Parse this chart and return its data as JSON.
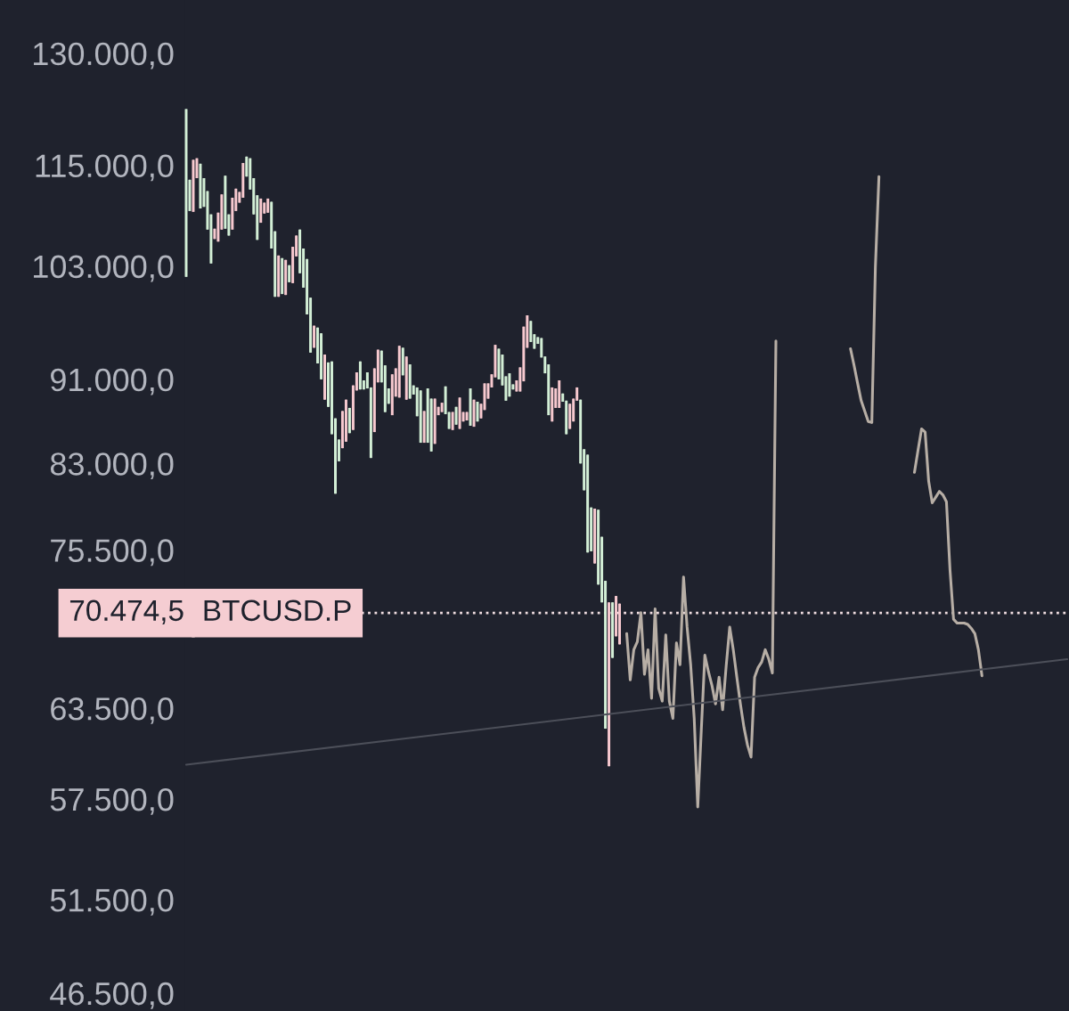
{
  "chart_data": {
    "type": "candlestick",
    "tick_labels": "y",
    "log": true,
    "grid": false,
    "ylim": [
      45600,
      137800
    ],
    "yticks": [
      {
        "value": 130000,
        "label": "130.000,0"
      },
      {
        "value": 115000,
        "label": "115.000,0"
      },
      {
        "value": 103000,
        "label": "103.000,0"
      },
      {
        "value": 91000,
        "label": "91.000,0"
      },
      {
        "value": 83000,
        "label": "83.000,0"
      },
      {
        "value": 75500,
        "label": "75.500,0"
      },
      {
        "value": 63500,
        "label": "63.500,0"
      },
      {
        "value": 57500,
        "label": "57.500,0"
      },
      {
        "value": 51500,
        "label": "51.500,0"
      },
      {
        "value": 46500,
        "label": "46.500,0"
      }
    ],
    "ref_lines": [
      {
        "axis": "y",
        "value": 70474.5,
        "label": "70.474,5",
        "color": "#efdde0",
        "line_style": "dotted"
      }
    ],
    "annotations": [
      "BTCUSD.P"
    ],
    "categories": [
      null,
      null,
      null,
      null,
      null,
      null,
      null,
      null,
      null,
      null,
      null,
      null,
      null,
      null,
      null,
      null,
      null,
      null,
      null,
      null,
      null,
      null,
      null,
      null,
      null,
      null,
      null,
      null,
      null,
      null,
      null,
      null,
      null,
      null,
      null,
      null,
      null,
      null,
      null,
      null,
      null,
      null,
      null,
      null,
      null,
      null,
      null,
      null,
      null,
      null,
      null,
      null,
      null,
      null,
      null,
      null,
      null,
      null,
      null,
      null,
      null,
      null,
      null,
      null,
      null,
      null,
      null,
      null,
      null,
      null,
      null,
      null,
      null,
      null,
      null,
      null,
      null,
      null,
      null,
      null,
      null,
      null,
      null,
      null,
      null,
      null,
      null,
      null,
      null,
      null,
      null,
      null,
      null,
      null,
      null,
      null,
      null,
      null,
      null,
      null,
      null,
      null,
      null,
      null,
      null,
      null,
      null,
      null,
      null,
      null,
      null,
      null,
      null,
      null,
      null,
      null,
      null,
      null,
      null,
      null,
      null,
      null,
      null,
      null,
      null,
      null,
      null,
      null,
      null,
      null,
      null,
      null,
      null,
      null,
      null,
      null,
      null,
      null,
      null,
      null,
      null,
      null,
      null,
      null,
      null,
      null,
      null,
      null,
      null,
      null,
      null,
      null,
      null,
      null,
      null,
      null,
      null,
      null,
      null,
      null,
      null,
      null,
      null,
      null,
      null,
      null,
      null,
      null,
      null,
      null,
      null,
      null,
      null,
      null,
      null,
      null,
      null,
      null,
      null,
      null,
      null,
      null,
      null,
      null,
      null,
      null,
      null,
      null,
      null,
      null,
      null,
      null,
      null,
      null,
      null,
      null,
      null,
      null,
      null,
      null,
      null,
      null,
      null,
      null,
      null,
      null,
      null,
      null,
      null,
      null,
      null,
      null,
      null,
      null,
      null,
      null,
      null,
      null,
      null,
      null,
      null,
      null,
      null,
      null,
      null,
      null,
      null,
      null,
      null,
      null,
      null,
      null,
      null,
      null,
      null,
      null,
      null,
      null,
      null,
      null,
      null,
      null,
      null,
      null,
      null,
      null,
      null,
      null,
      null
    ],
    "ohlc": [
      [
        122300,
        122300,
        101800,
        101800
      ],
      [
        113200,
        113200,
        109400,
        109400
      ],
      [
        109300,
        115700,
        109300,
        115700
      ],
      [
        113400,
        115900,
        113400,
        115900
      ],
      [
        115200,
        115200,
        109700,
        109700
      ],
      [
        113400,
        113400,
        109900,
        109900
      ],
      [
        111800,
        111800,
        107200,
        107200
      ],
      [
        109000,
        109000,
        103300,
        103300
      ],
      [
        106100,
        107300,
        106100,
        107300
      ],
      [
        105800,
        109200,
        105800,
        109200
      ],
      [
        107200,
        111400,
        107200,
        111400
      ],
      [
        113700,
        113700,
        107300,
        107300
      ],
      [
        109000,
        109000,
        106500,
        106500
      ],
      [
        107200,
        111000,
        107200,
        111000
      ],
      [
        109400,
        112100,
        109400,
        112100
      ],
      [
        110400,
        111700,
        110400,
        111700
      ],
      [
        111000,
        115300,
        111000,
        115300
      ],
      [
        116100,
        116100,
        113600,
        113600
      ],
      [
        115900,
        115900,
        112000,
        112000
      ],
      [
        113400,
        113400,
        109000,
        109000
      ],
      [
        111300,
        111300,
        106000,
        106000
      ],
      [
        108000,
        110900,
        108000,
        110900
      ],
      [
        109100,
        110400,
        109100,
        110400
      ],
      [
        109200,
        110900,
        109200,
        110900
      ],
      [
        110500,
        110500,
        105000,
        105000
      ],
      [
        107000,
        107000,
        99600,
        99600
      ],
      [
        99600,
        104200,
        99600,
        104200
      ],
      [
        103900,
        103900,
        99900,
        99900
      ],
      [
        99800,
        103700,
        99800,
        103700
      ],
      [
        103100,
        103100,
        101200,
        101200
      ],
      [
        101100,
        105200,
        101100,
        105200
      ],
      [
        104100,
        106500,
        104100,
        106500
      ],
      [
        107200,
        107200,
        102200,
        102200
      ],
      [
        105000,
        105000,
        100600,
        100600
      ],
      [
        103800,
        103800,
        97700,
        97700
      ],
      [
        99500,
        99500,
        93700,
        93700
      ],
      [
        94200,
        96500,
        94200,
        96500
      ],
      [
        96300,
        96300,
        92600,
        92600
      ],
      [
        95700,
        95700,
        91000,
        91000
      ],
      [
        89000,
        93500,
        89000,
        93500
      ],
      [
        92700,
        92700,
        88300,
        88300
      ],
      [
        92800,
        92800,
        85700,
        85700
      ],
      [
        87200,
        87200,
        80300,
        80300
      ],
      [
        85200,
        85200,
        83200,
        83200
      ],
      [
        84400,
        87900,
        84400,
        87900
      ],
      [
        85000,
        89000,
        85000,
        89000
      ],
      [
        88200,
        88200,
        85800,
        85800
      ],
      [
        86100,
        90400,
        86100,
        90400
      ],
      [
        89900,
        91700,
        89900,
        91700
      ],
      [
        92800,
        92800,
        90000,
        90000
      ],
      [
        90900,
        90900,
        90000,
        90000
      ],
      [
        91700,
        91700,
        90100,
        90100
      ],
      [
        90200,
        90200,
        83500,
        83500
      ],
      [
        85900,
        92100,
        85900,
        92100
      ],
      [
        90700,
        94000,
        90700,
        94000
      ],
      [
        93900,
        93900,
        90700,
        90700
      ],
      [
        92400,
        92400,
        87800,
        87800
      ],
      [
        90100,
        90100,
        88600,
        88600
      ],
      [
        87500,
        91500,
        87500,
        91500
      ],
      [
        89300,
        92100,
        89300,
        92100
      ],
      [
        89200,
        94400,
        89200,
        94400
      ],
      [
        94200,
        94200,
        91400,
        91400
      ],
      [
        89000,
        93300,
        89000,
        93300
      ],
      [
        92500,
        92500,
        89100,
        89100
      ],
      [
        90400,
        90400,
        89500,
        89500
      ],
      [
        90200,
        90200,
        87400,
        87400
      ],
      [
        89900,
        89900,
        84900,
        84900
      ],
      [
        84900,
        87900,
        84900,
        87900
      ],
      [
        90100,
        90100,
        84900,
        84900
      ],
      [
        89100,
        89100,
        84100,
        84100
      ],
      [
        84800,
        89100,
        84800,
        89100
      ],
      [
        87500,
        88300,
        87500,
        88300
      ],
      [
        87800,
        88700,
        87800,
        88700
      ],
      [
        90300,
        90300,
        87600,
        87600
      ],
      [
        87800,
        87800,
        86200,
        86200
      ],
      [
        86100,
        87800,
        86100,
        87800
      ],
      [
        88300,
        88300,
        86600,
        86600
      ],
      [
        86200,
        89200,
        86200,
        89200
      ],
      [
        86900,
        87800,
        86900,
        87800
      ],
      [
        87000,
        87800,
        87000,
        87800
      ],
      [
        90100,
        90100,
        86500,
        86500
      ],
      [
        86400,
        89000,
        86400,
        89000
      ],
      [
        88800,
        88800,
        86900,
        86900
      ],
      [
        87200,
        88600,
        87200,
        88600
      ],
      [
        88000,
        90600,
        88000,
        90600
      ],
      [
        89100,
        90600,
        89100,
        90600
      ],
      [
        90200,
        91500,
        90200,
        91500
      ],
      [
        91200,
        94500,
        91200,
        94500
      ],
      [
        94100,
        94100,
        91000,
        91000
      ],
      [
        93500,
        93500,
        90400,
        90400
      ],
      [
        91300,
        91300,
        88900,
        88900
      ],
      [
        91600,
        91600,
        89300,
        89300
      ],
      [
        90500,
        90500,
        90000,
        90000
      ],
      [
        89800,
        90900,
        89800,
        90900
      ],
      [
        89800,
        92200,
        89800,
        92200
      ],
      [
        90800,
        96400,
        90800,
        96400
      ],
      [
        94200,
        97600,
        94200,
        97600
      ],
      [
        97000,
        97000,
        94800,
        94800
      ],
      [
        95600,
        95600,
        94100,
        94100
      ],
      [
        95300,
        95300,
        94600,
        94600
      ],
      [
        95200,
        95200,
        93200,
        93200
      ],
      [
        93300,
        93300,
        91600,
        91600
      ],
      [
        92500,
        92500,
        87500,
        87500
      ],
      [
        86900,
        90200,
        86900,
        90200
      ],
      [
        88200,
        90100,
        88200,
        90100
      ],
      [
        88200,
        90900,
        88200,
        90900
      ],
      [
        89600,
        89600,
        88800,
        88800
      ],
      [
        88900,
        88900,
        85700,
        85700
      ],
      [
        86200,
        88600,
        86200,
        88600
      ],
      [
        86900,
        89100,
        86900,
        89100
      ],
      [
        88900,
        90200,
        88900,
        90200
      ],
      [
        89000,
        89000,
        83000,
        83000
      ],
      [
        84300,
        84300,
        80600,
        80600
      ],
      [
        83800,
        83800,
        75300,
        75300
      ],
      [
        79100,
        79100,
        75400,
        75400
      ],
      [
        74400,
        79000,
        74400,
        79000
      ],
      [
        78900,
        78900,
        72700,
        72700
      ],
      [
        76600,
        76600,
        71300,
        71300
      ],
      [
        73000,
        73000,
        62100,
        62100
      ],
      [
        59600,
        71300,
        59600,
        71300
      ],
      [
        71300,
        71300,
        67100,
        67100
      ],
      [
        68700,
        71800,
        68700,
        71800
      ],
      [
        68100,
        71200,
        68100,
        71200
      ],
      null,
      null,
      null,
      null,
      null,
      null,
      null,
      null,
      null,
      null,
      null,
      null,
      null,
      null,
      null,
      null,
      null,
      null,
      null,
      null,
      null,
      null,
      null,
      null,
      null,
      null,
      null,
      null,
      null,
      null,
      null,
      null,
      null,
      null,
      null,
      null,
      null,
      null,
      null,
      null,
      null,
      null,
      null,
      null,
      null,
      null,
      null,
      null,
      null,
      null,
      null,
      null,
      null,
      null,
      null,
      null,
      null,
      null,
      null,
      null,
      null,
      null,
      null,
      null,
      null,
      null,
      null,
      null,
      null,
      null,
      null,
      null,
      null,
      null,
      null,
      null,
      null,
      null,
      null,
      null,
      null,
      null,
      null,
      null,
      null,
      null,
      null,
      null,
      null,
      null,
      null,
      null,
      null,
      null,
      null,
      null,
      null,
      null,
      null,
      null,
      null,
      null,
      null,
      null,
      null,
      null,
      null,
      null,
      null,
      null,
      null,
      null,
      null,
      null,
      null,
      null,
      null,
      null,
      null,
      null,
      null,
      null,
      null,
      null,
      null,
      null
    ],
    "colors": [
      "#d3efd6",
      "#d3efd6",
      "#f7c9cf",
      "#f7c9cf",
      "#d3efd6",
      "#d3efd6",
      "#d3efd6",
      "#d3efd6",
      "#f7c9cf",
      "#f7c9cf",
      "#f7c9cf",
      "#d3efd6",
      "#d3efd6",
      "#f7c9cf",
      "#f7c9cf",
      "#f7c9cf",
      "#f7c9cf",
      "#d3efd6",
      "#d3efd6",
      "#d3efd6",
      "#d3efd6",
      "#f7c9cf",
      "#f7c9cf",
      "#f7c9cf",
      "#d3efd6",
      "#d3efd6",
      "#f7c9cf",
      "#d3efd6",
      "#f7c9cf",
      "#d3efd6",
      "#f7c9cf",
      "#f7c9cf",
      "#d3efd6",
      "#d3efd6",
      "#d3efd6",
      "#d3efd6",
      "#f7c9cf",
      "#d3efd6",
      "#d3efd6",
      "#f7c9cf",
      "#d3efd6",
      "#d3efd6",
      "#d3efd6",
      "#d3efd6",
      "#f7c9cf",
      "#f7c9cf",
      "#d3efd6",
      "#f7c9cf",
      "#f7c9cf",
      "#d3efd6",
      "#d3efd6",
      "#d3efd6",
      "#d3efd6",
      "#f7c9cf",
      "#f7c9cf",
      "#d3efd6",
      "#d3efd6",
      "#d3efd6",
      "#f7c9cf",
      "#f7c9cf",
      "#f7c9cf",
      "#d3efd6",
      "#f7c9cf",
      "#d3efd6",
      "#d3efd6",
      "#d3efd6",
      "#d3efd6",
      "#f7c9cf",
      "#d3efd6",
      "#d3efd6",
      "#f7c9cf",
      "#f7c9cf",
      "#f7c9cf",
      "#d3efd6",
      "#d3efd6",
      "#f7c9cf",
      "#d3efd6",
      "#f7c9cf",
      "#f7c9cf",
      "#f7c9cf",
      "#d3efd6",
      "#f7c9cf",
      "#d3efd6",
      "#f7c9cf",
      "#f7c9cf",
      "#f7c9cf",
      "#f7c9cf",
      "#f7c9cf",
      "#d3efd6",
      "#d3efd6",
      "#d3efd6",
      "#d3efd6",
      "#d3efd6",
      "#f7c9cf",
      "#f7c9cf",
      "#f7c9cf",
      "#f7c9cf",
      "#d3efd6",
      "#d3efd6",
      "#d3efd6",
      "#d3efd6",
      "#d3efd6",
      "#d3efd6",
      "#f7c9cf",
      "#f7c9cf",
      "#f7c9cf",
      "#d3efd6",
      "#d3efd6",
      "#f7c9cf",
      "#f7c9cf",
      "#f7c9cf",
      "#d3efd6",
      "#d3efd6",
      "#d3efd6",
      "#d3efd6",
      "#f7c9cf",
      "#d3efd6",
      "#d3efd6",
      "#d3efd6",
      "#f7c9cf",
      "#d3efd6",
      "#f7c9cf",
      "#f7c9cf",
      null,
      null,
      null,
      null,
      null,
      null,
      null,
      null,
      null,
      null,
      null,
      null,
      null,
      null,
      null,
      null,
      null,
      null,
      null,
      null,
      null,
      null,
      null,
      null,
      null,
      null,
      null,
      null,
      null,
      null,
      null,
      null,
      null,
      null,
      null,
      null,
      null,
      null,
      null,
      null,
      null,
      null,
      null,
      null,
      null,
      null,
      null,
      null,
      null,
      null,
      null,
      null,
      null,
      null,
      null,
      null,
      null,
      null,
      null,
      null,
      null,
      null,
      null,
      null,
      null,
      null,
      null,
      null,
      null,
      null,
      null,
      null,
      null,
      null,
      null,
      null,
      null,
      null,
      null,
      null,
      null,
      null,
      null,
      null,
      null,
      null,
      null,
      null,
      null,
      null,
      null,
      null,
      null,
      null,
      null,
      null,
      null,
      null,
      null,
      null,
      null,
      null,
      null,
      null,
      null,
      null,
      null,
      null,
      null,
      null,
      null,
      null,
      null,
      null,
      null,
      null,
      null,
      null,
      null,
      null,
      null,
      null,
      null,
      null,
      null,
      null
    ],
    "series": [
      {
        "type": "line",
        "color": "#b7aea5",
        "values": [
          null,
          null,
          null,
          null,
          null,
          null,
          null,
          null,
          null,
          null,
          null,
          null,
          null,
          null,
          null,
          null,
          null,
          null,
          null,
          null,
          null,
          null,
          null,
          null,
          null,
          null,
          null,
          null,
          null,
          null,
          null,
          null,
          null,
          null,
          null,
          null,
          null,
          null,
          null,
          null,
          null,
          null,
          null,
          null,
          null,
          null,
          null,
          null,
          null,
          null,
          null,
          null,
          null,
          null,
          null,
          null,
          null,
          null,
          null,
          null,
          null,
          null,
          null,
          null,
          null,
          null,
          null,
          null,
          null,
          null,
          null,
          null,
          null,
          null,
          null,
          null,
          null,
          null,
          null,
          null,
          null,
          null,
          null,
          null,
          null,
          null,
          null,
          null,
          null,
          null,
          null,
          null,
          null,
          null,
          null,
          null,
          null,
          null,
          null,
          null,
          null,
          null,
          null,
          null,
          null,
          null,
          null,
          null,
          null,
          null,
          null,
          null,
          null,
          null,
          null,
          null,
          null,
          null,
          null,
          null,
          null,
          null,
          null,
          null,
          68900,
          65500,
          67700,
          68300,
          70500,
          65900,
          67700,
          64200,
          70800,
          64900,
          64000,
          68800,
          64000,
          62800,
          68200,
          66600,
          73300,
          69400,
          66600,
          62800,
          57000,
          62000,
          67300,
          66100,
          65100,
          63800,
          65700,
          63400,
          66500,
          69400,
          67700,
          65700,
          63800,
          62200,
          61000,
          60200,
          65700,
          66400,
          66800,
          67700,
          67000,
          66000,
          94900,
          null,
          null,
          null,
          null,
          null,
          null,
          null,
          null,
          null,
          null,
          null,
          null,
          null,
          null,
          null,
          null,
          null,
          null,
          null,
          null,
          null,
          null,
          null,
          null,
          null,
          null,
          null,
          null,
          null,
          null,
          null,
          null,
          null,
          null,
          null,
          null,
          null,
          null,
          null,
          null,
          null,
          null,
          null,
          null,
          null,
          null,
          null,
          null,
          null,
          null,
          null,
          null,
          null,
          null,
          null,
          null,
          null,
          null,
          null,
          null,
          null,
          null,
          null,
          null,
          null,
          null,
          null,
          null,
          null,
          null,
          null,
          null,
          null,
          null,
          null,
          null,
          null,
          null,
          null,
          null,
          null,
          null
        ]
      },
      {
        "type": "line",
        "color": "#b7aea5",
        "values": [
          null,
          null,
          null,
          null,
          null,
          null,
          null,
          null,
          null,
          null,
          null,
          null,
          null,
          null,
          null,
          null,
          null,
          null,
          null,
          null,
          null,
          null,
          null,
          null,
          null,
          null,
          null,
          null,
          null,
          null,
          null,
          null,
          null,
          null,
          null,
          null,
          null,
          null,
          null,
          null,
          null,
          null,
          null,
          null,
          null,
          null,
          null,
          null,
          null,
          null,
          null,
          null,
          null,
          null,
          null,
          null,
          null,
          null,
          null,
          null,
          null,
          null,
          null,
          null,
          null,
          null,
          null,
          null,
          null,
          null,
          null,
          null,
          null,
          null,
          null,
          null,
          null,
          null,
          null,
          null,
          null,
          null,
          null,
          null,
          null,
          null,
          null,
          null,
          null,
          null,
          null,
          null,
          null,
          null,
          null,
          null,
          null,
          null,
          null,
          null,
          null,
          null,
          null,
          null,
          null,
          null,
          null,
          null,
          null,
          null,
          null,
          null,
          null,
          null,
          null,
          null,
          null,
          null,
          null,
          null,
          null,
          null,
          null,
          null,
          null,
          null,
          null,
          null,
          null,
          null,
          null,
          null,
          null,
          null,
          null,
          null,
          null,
          null,
          null,
          null,
          null,
          null,
          null,
          null,
          null,
          null,
          null,
          null,
          null,
          null,
          null,
          null,
          null,
          null,
          null,
          null,
          null,
          null,
          null,
          null,
          null,
          null,
          null,
          null,
          null,
          null,
          null,
          null,
          null,
          null,
          null,
          null,
          null,
          null,
          null,
          null,
          null,
          null,
          null,
          null,
          null,
          null,
          null,
          null,
          null,
          null,
          null,
          94100,
          92400,
          90600,
          88900,
          87900,
          86900,
          86800,
          102900,
          113600,
          null,
          null,
          null,
          null,
          null,
          null,
          null,
          null,
          null,
          null,
          null,
          null,
          null,
          null,
          null,
          null,
          null,
          null,
          null,
          null,
          null,
          null,
          null,
          null,
          null,
          null,
          null,
          null,
          null,
          null,
          null,
          null,
          null,
          null,
          null,
          null,
          null,
          null,
          null,
          null,
          null,
          null,
          null,
          null,
          null,
          null,
          null,
          null,
          null,
          null,
          null,
          null,
          null
        ]
      },
      {
        "type": "line",
        "color": "#b7aea5",
        "values": [
          null,
          null,
          null,
          null,
          null,
          null,
          null,
          null,
          null,
          null,
          null,
          null,
          null,
          null,
          null,
          null,
          null,
          null,
          null,
          null,
          null,
          null,
          null,
          null,
          null,
          null,
          null,
          null,
          null,
          null,
          null,
          null,
          null,
          null,
          null,
          null,
          null,
          null,
          null,
          null,
          null,
          null,
          null,
          null,
          null,
          null,
          null,
          null,
          null,
          null,
          null,
          null,
          null,
          null,
          null,
          null,
          null,
          null,
          null,
          null,
          null,
          null,
          null,
          null,
          null,
          null,
          null,
          null,
          null,
          null,
          null,
          null,
          null,
          null,
          null,
          null,
          null,
          null,
          null,
          null,
          null,
          null,
          null,
          null,
          null,
          null,
          null,
          null,
          null,
          null,
          null,
          null,
          null,
          null,
          null,
          null,
          null,
          null,
          null,
          null,
          null,
          null,
          null,
          null,
          null,
          null,
          null,
          null,
          null,
          null,
          null,
          null,
          null,
          null,
          null,
          null,
          null,
          null,
          null,
          null,
          null,
          null,
          null,
          null,
          null,
          null,
          null,
          null,
          null,
          null,
          null,
          null,
          null,
          null,
          null,
          null,
          null,
          null,
          null,
          null,
          null,
          null,
          null,
          null,
          null,
          null,
          null,
          null,
          null,
          null,
          null,
          null,
          null,
          null,
          null,
          null,
          null,
          null,
          null,
          null,
          null,
          null,
          null,
          null,
          null,
          null,
          null,
          null,
          null,
          null,
          null,
          null,
          null,
          null,
          null,
          null,
          null,
          null,
          null,
          null,
          null,
          null,
          null,
          null,
          null,
          null,
          null,
          null,
          null,
          null,
          null,
          null,
          null,
          null,
          null,
          null,
          null,
          null,
          null,
          null,
          null,
          null,
          null,
          null,
          null,
          82200,
          84200,
          86200,
          85900,
          81400,
          79500,
          80000,
          80500,
          80200,
          79600,
          73900,
          70000,
          69700,
          69700,
          69700,
          69600,
          69300,
          68900,
          67700,
          65800,
          null,
          null,
          null,
          null,
          null,
          null,
          null,
          null,
          null,
          null,
          null,
          null,
          null,
          null,
          null,
          null,
          null,
          null,
          null,
          null,
          null,
          null,
          null,
          null
        ]
      },
      {
        "type": "line",
        "color": "#4c4f59",
        "values": [
          59700,
          null,
          null,
          null,
          null,
          null,
          null,
          null,
          null,
          null,
          null,
          null,
          null,
          null,
          null,
          null,
          null,
          null,
          null,
          null,
          null,
          null,
          null,
          null,
          null,
          null,
          null,
          null,
          null,
          null,
          null,
          null,
          null,
          null,
          null,
          null,
          null,
          null,
          null,
          null,
          null,
          null,
          null,
          null,
          null,
          null,
          null,
          null,
          null,
          null,
          null,
          null,
          null,
          null,
          null,
          null,
          null,
          null,
          null,
          null,
          null,
          null,
          null,
          null,
          null,
          null,
          null,
          null,
          null,
          null,
          null,
          null,
          null,
          null,
          null,
          null,
          null,
          null,
          null,
          null,
          null,
          null,
          null,
          null,
          null,
          null,
          null,
          null,
          null,
          null,
          null,
          null,
          null,
          null,
          null,
          null,
          null,
          null,
          null,
          null,
          null,
          null,
          null,
          null,
          null,
          null,
          null,
          null,
          null,
          null,
          null,
          null,
          null,
          null,
          null,
          null,
          null,
          null,
          null,
          null,
          null,
          null,
          null,
          null,
          null,
          null,
          null,
          null,
          null,
          null,
          null,
          null,
          null,
          null,
          null,
          null,
          null,
          null,
          null,
          null,
          null,
          null,
          null,
          null,
          null,
          null,
          null,
          null,
          null,
          null,
          null,
          null,
          null,
          null,
          null,
          null,
          null,
          null,
          null,
          null,
          null,
          null,
          null,
          null,
          null,
          null,
          null,
          null,
          null,
          null,
          null,
          null,
          null,
          null,
          null,
          null,
          null,
          null,
          null,
          null,
          null,
          null,
          null,
          null,
          null,
          null,
          null,
          null,
          null,
          null,
          null,
          null,
          null,
          null,
          null,
          null,
          null,
          null,
          null,
          null,
          null,
          null,
          null,
          null,
          null,
          null,
          null,
          null,
          null,
          null,
          null,
          null,
          null,
          null,
          null,
          null,
          null,
          null,
          null,
          null,
          null,
          null,
          null,
          null,
          null,
          null,
          null,
          null,
          null,
          null,
          null,
          null,
          null,
          null,
          null,
          null,
          null,
          null,
          null,
          null,
          null,
          null,
          null,
          null,
          null,
          null,
          null,
          null,
          67000
        ]
      }
    ]
  }
}
